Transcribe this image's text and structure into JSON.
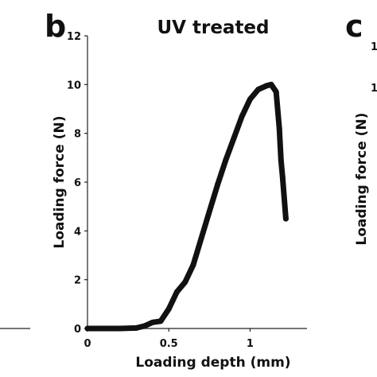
{
  "panels": {
    "b_letter": "b",
    "c_letter": "c"
  },
  "chart_data": {
    "type": "line",
    "title": "UV treated",
    "xlabel": "Loading depth (mm)",
    "ylabel": "Loading force (N)",
    "xlim": [
      0,
      1.35
    ],
    "ylim": [
      0,
      12
    ],
    "xticks": [
      0,
      0.5,
      1
    ],
    "xtick_labels": [
      "0",
      "0.5",
      "1"
    ],
    "yticks": [
      0,
      2,
      4,
      6,
      8,
      10,
      12
    ],
    "ytick_labels": [
      "0",
      "2",
      "4",
      "6",
      "8",
      "10",
      "12"
    ],
    "grid": false,
    "series": [
      {
        "color": "#111111",
        "x": [
          0,
          0.1,
          0.2,
          0.3,
          0.35,
          0.4,
          0.45,
          0.5,
          0.55,
          0.6,
          0.65,
          0.7,
          0.75,
          0.8,
          0.85,
          0.9,
          0.95,
          1.0,
          1.05,
          1.1,
          1.13,
          1.16,
          1.18,
          1.19,
          1.2,
          1.22
        ],
        "y": [
          0,
          0,
          0,
          0.02,
          0.1,
          0.25,
          0.3,
          0.8,
          1.5,
          1.9,
          2.6,
          3.7,
          4.8,
          5.9,
          6.9,
          7.8,
          8.7,
          9.4,
          9.8,
          9.95,
          10.0,
          9.7,
          8.2,
          6.9,
          6.2,
          4.5
        ]
      }
    ]
  },
  "neighbor_panel": {
    "ylabel": "Loading force (N)",
    "ytick_top": "1",
    "ytick_second": "1"
  }
}
